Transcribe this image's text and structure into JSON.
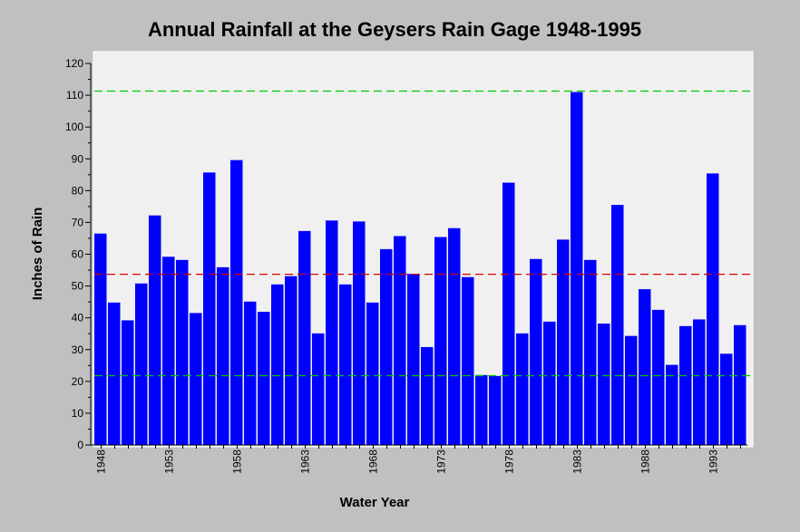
{
  "chart_data": {
    "type": "bar",
    "title": "Annual Rainfall at the Geysers Rain Gage 1948-1995",
    "xlabel": "Water Year",
    "ylabel": "Inches of Rain",
    "ylim": [
      0,
      120
    ],
    "yticks": [
      0,
      10,
      20,
      30,
      40,
      50,
      60,
      70,
      80,
      90,
      100,
      110,
      120
    ],
    "xtick_labels": [
      "1948",
      "1953",
      "1958",
      "1963",
      "1968",
      "1973",
      "1978",
      "1983",
      "1988",
      "1993"
    ],
    "categories": [
      "1948",
      "1949",
      "1950",
      "1951",
      "1952",
      "1953",
      "1954",
      "1955",
      "1956",
      "1957",
      "1958",
      "1959",
      "1960",
      "1961",
      "1962",
      "1963",
      "1964",
      "1965",
      "1966",
      "1967",
      "1968",
      "1969",
      "1970",
      "1971",
      "1972",
      "1973",
      "1974",
      "1975",
      "1976",
      "1977",
      "1978",
      "1979",
      "1980",
      "1981",
      "1982",
      "1983",
      "1984",
      "1985",
      "1986",
      "1987",
      "1988",
      "1989",
      "1990",
      "1991",
      "1992",
      "1993",
      "1994",
      "1995"
    ],
    "values": [
      66.5,
      44.8,
      39.2,
      50.8,
      72.2,
      59.2,
      58.2,
      41.5,
      85.7,
      55.9,
      89.6,
      45.1,
      41.9,
      50.5,
      53.1,
      67.3,
      35.1,
      70.6,
      50.5,
      70.3,
      44.8,
      61.6,
      65.7,
      53.8,
      30.8,
      65.4,
      68.2,
      52.8,
      22.0,
      21.7,
      82.5,
      35.1,
      58.5,
      38.8,
      64.6,
      111.0,
      58.2,
      38.2,
      75.5,
      34.3,
      49.0,
      42.5,
      25.2,
      37.4,
      39.5,
      85.4,
      28.7,
      37.7
    ],
    "reference_lines": [
      {
        "value": 111.3,
        "color": "#00c800",
        "style": "dashed"
      },
      {
        "value": 53.7,
        "color": "#d80000",
        "style": "dashed"
      },
      {
        "value": 21.8,
        "color": "#00c800",
        "style": "dashed"
      }
    ],
    "bar_color": "#0000ff",
    "plot_background": "#f0f0f0"
  }
}
